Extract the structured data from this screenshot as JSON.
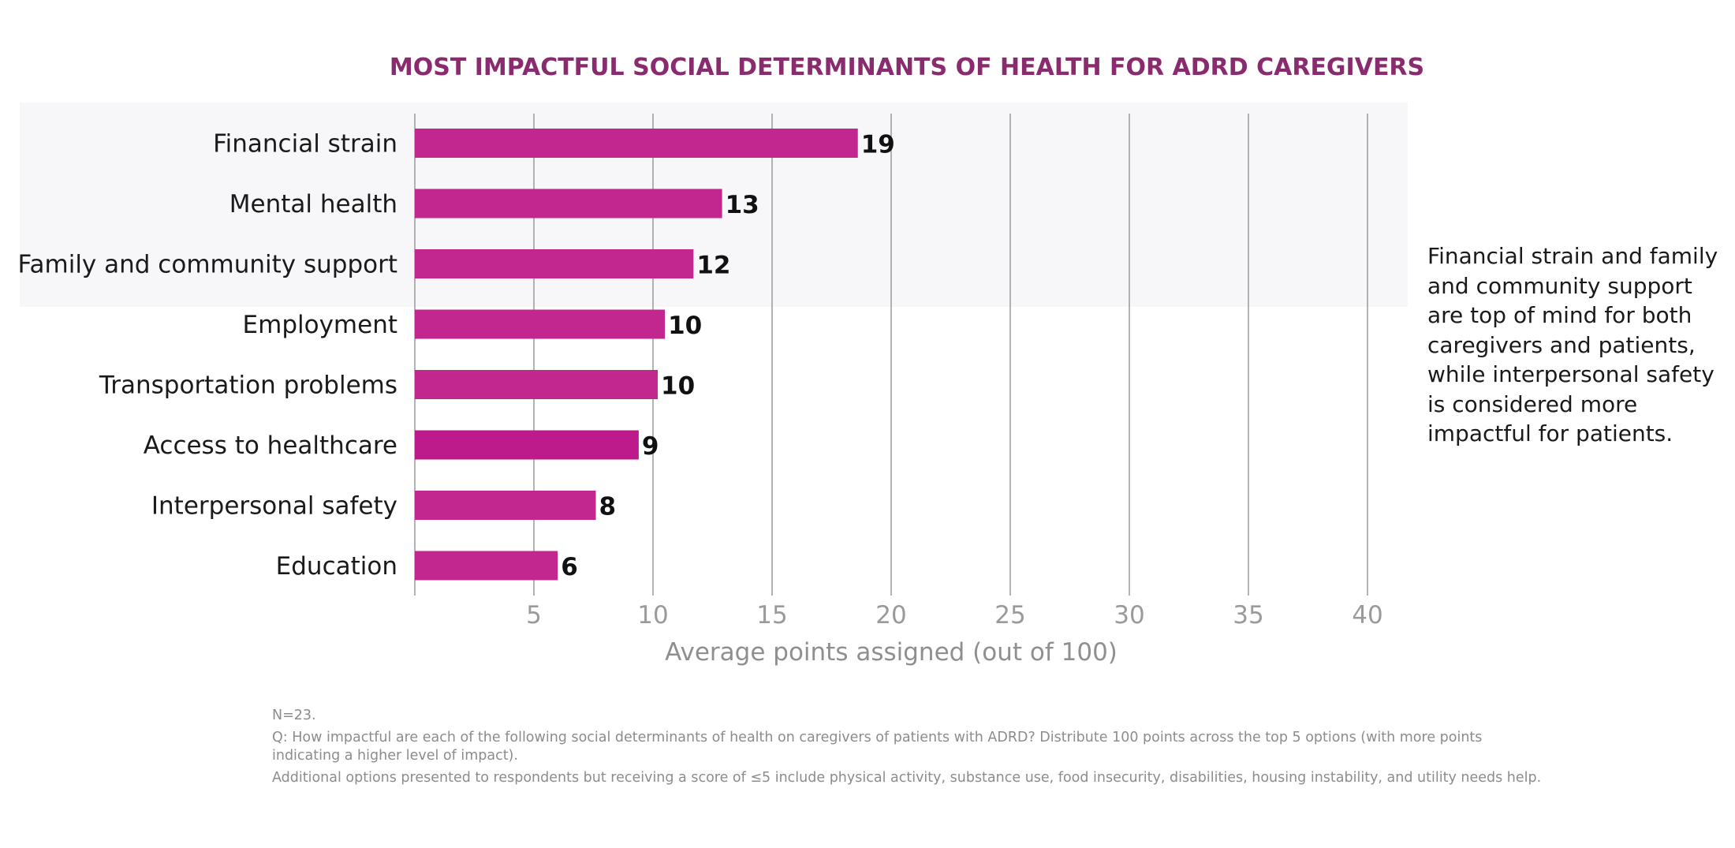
{
  "chart_data": {
    "type": "bar",
    "orientation": "horizontal",
    "title": "MOST IMPACTFUL SOCIAL DETERMINANTS OF HEALTH FOR ADRD CAREGIVERS",
    "xlabel": "Average points assigned (out of 100)",
    "ylabel": "",
    "categories": [
      "Financial strain",
      "Mental health",
      "Family and community support",
      "Employment",
      "Transportation problems",
      "Access to healthcare",
      "Interpersonal safety",
      "Education"
    ],
    "values": [
      18.6,
      12.9,
      11.7,
      10.5,
      10.2,
      9.4,
      7.6,
      6.0
    ],
    "value_labels": [
      "19",
      "13",
      "12",
      "10",
      "10",
      "9",
      "8",
      "6"
    ],
    "xlim": [
      0,
      41.7
    ],
    "xticks": [
      5,
      10,
      15,
      20,
      25,
      30,
      35,
      40
    ],
    "xtick_labels": [
      "5",
      "10",
      "15",
      "20",
      "25",
      "30",
      "35",
      "40"
    ],
    "grid": "vertical",
    "highlighted_categories": [
      "Financial strain",
      "Mental health",
      "Family and community support"
    ],
    "colors": {
      "bar": "#c2268f",
      "bar_alt": "#bd1a8c",
      "highlight_band": "#f7f7f9",
      "gridline": "#9a9a9a",
      "title": "#8a2a6f"
    }
  },
  "side_note": "Financial strain and family and community support are top of mind for both caregivers and patients, while interpersonal safety is considered more impactful for patients.",
  "footnotes": {
    "n": "N=23.",
    "question": "Q: How impactful are each of the following social determinants of health on caregivers of patients with ADRD?  Distribute 100 points across the top 5 options (with more points indicating a higher level of impact).",
    "additional": "Additional options presented to respondents but receiving a score of ≤5 include physical activity, substance use, food insecurity, disabilities, housing instability, and utility needs help."
  }
}
